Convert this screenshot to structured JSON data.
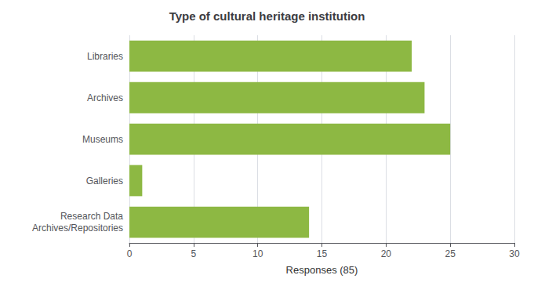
{
  "chart_data": {
    "type": "bar",
    "orientation": "horizontal",
    "title": "Type of cultural heritage institution",
    "categories": [
      "Research Data\nArchives/Repositories",
      "Galleries",
      "Museums",
      "Archives",
      "Libraries"
    ],
    "values": [
      14,
      1,
      25,
      23,
      22
    ],
    "color": "#8db843",
    "xlabel": "Responses (85)",
    "xlim": [
      0,
      30
    ],
    "xticks": [
      0,
      5,
      10,
      15,
      20,
      25,
      30
    ],
    "grid": true
  }
}
